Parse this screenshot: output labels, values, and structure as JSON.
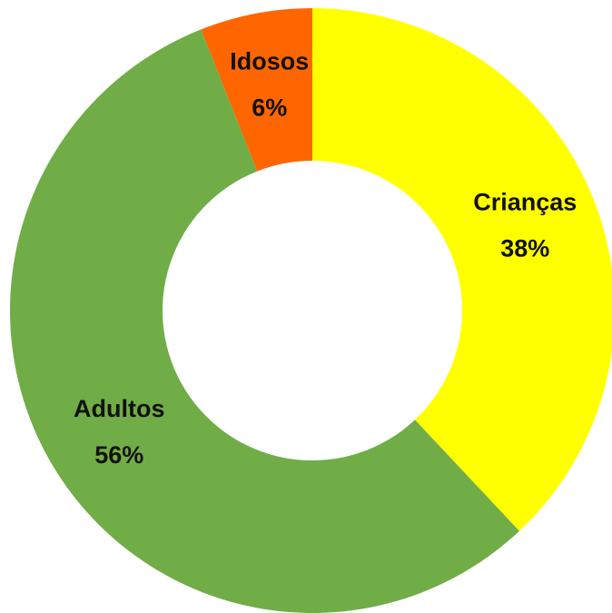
{
  "chart_data": {
    "type": "donut",
    "categories": [
      "Crianças",
      "Adultos",
      "Idosos"
    ],
    "values": [
      38,
      56,
      6
    ],
    "value_labels": [
      "38%",
      "56%",
      "6%"
    ],
    "colors": [
      "#ffff00",
      "#70ad47",
      "#ff6600"
    ]
  }
}
